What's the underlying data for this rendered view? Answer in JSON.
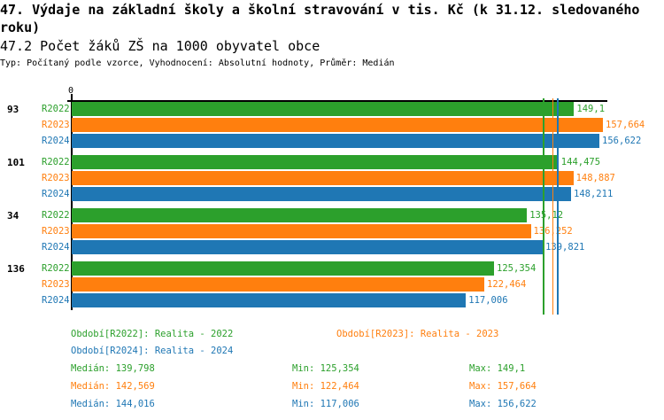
{
  "header": {
    "title_line1": "47. Výdaje na základní školy a školní stravování v tis. Kč (k 31.12. sledovaného",
    "title_line2": "roku)",
    "subtitle": "47.2 Počet žáků ZŠ na 1000 obyvatel obce",
    "info": "Typ: Počítaný podle vzorce, Vyhodnocení: Absolutní hodnoty, Průměr: Medián"
  },
  "colors": {
    "R2022": "#2ca02c",
    "R2023": "#ff7f0e",
    "R2024": "#1f77b4"
  },
  "chart_data": {
    "type": "bar",
    "orientation": "horizontal",
    "xlim": [
      0,
      157.664
    ],
    "x_tick_labels": [
      "0"
    ],
    "categories": [
      "93",
      "101",
      "34",
      "136"
    ],
    "series": [
      {
        "name": "R2022",
        "values": [
          149.1,
          144.475,
          135.12,
          125.354
        ],
        "labels": [
          "149,1",
          "144,475",
          "135,12",
          "125,354"
        ]
      },
      {
        "name": "R2023",
        "values": [
          157.664,
          148.887,
          136.252,
          122.464
        ],
        "labels": [
          "157,664",
          "148,887",
          "136,252",
          "122,464"
        ]
      },
      {
        "name": "R2024",
        "values": [
          156.622,
          148.211,
          139.821,
          117.006
        ],
        "labels": [
          "156,622",
          "148,211",
          "139,821",
          "117,006"
        ]
      }
    ],
    "medians": [
      139.798,
      142.569,
      144.016
    ],
    "legend": [
      "Období[R2022]: Realita - 2022",
      "Období[R2023]: Realita - 2023",
      "Období[R2024]: Realita - 2024"
    ],
    "stats": [
      {
        "median": "Medián: 139,798",
        "min": "Min: 125,354",
        "max": "Max: 149,1"
      },
      {
        "median": "Medián: 142,569",
        "min": "Min: 122,464",
        "max": "Max: 157,664"
      },
      {
        "median": "Medián: 144,016",
        "min": "Min: 117,006",
        "max": "Max: 156,622"
      }
    ]
  }
}
